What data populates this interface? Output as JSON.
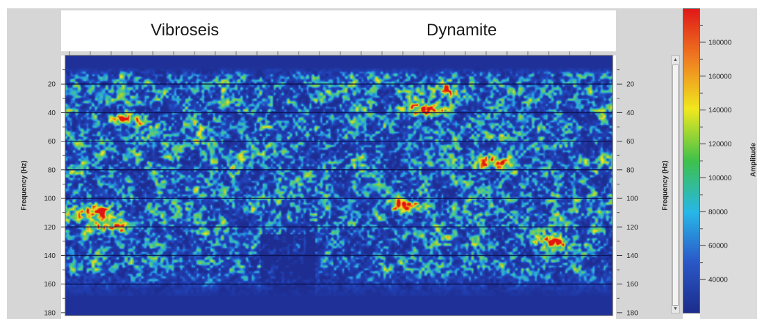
{
  "chart_data": {
    "type": "heatmap",
    "titles": [
      "Vibroseis",
      "Dynamite"
    ],
    "ylabel": "Frequency (Hz)",
    "yticks": [
      "20",
      "40",
      "60",
      "80",
      "100",
      "120",
      "140",
      "160",
      "180"
    ],
    "colorbar": {
      "label": "Amplitude",
      "ticks": [
        "40000",
        "60000",
        "80000",
        "100000",
        "120000",
        "140000",
        "160000",
        "180000"
      ],
      "colors": [
        "#1c2c8c",
        "#2a59c8",
        "#27b7e8",
        "#3ec14b",
        "#f0e81e",
        "#f08020",
        "#e01818"
      ]
    },
    "gridlines_hz": [
      20,
      40,
      60,
      80,
      100,
      120,
      140,
      160
    ],
    "hotspots": [
      {
        "panel": "Vibroseis",
        "hz": 110,
        "amp": 180000
      },
      {
        "panel": "Vibroseis",
        "hz": 120,
        "amp": 185000
      },
      {
        "panel": "Vibroseis",
        "hz": 45,
        "amp": 170000
      },
      {
        "panel": "Dynamite",
        "hz": 38,
        "amp": 190000
      },
      {
        "panel": "Dynamite",
        "hz": 25,
        "amp": 180000
      },
      {
        "panel": "Dynamite",
        "hz": 75,
        "amp": 185000
      },
      {
        "panel": "Dynamite",
        "hz": 105,
        "amp": 190000
      },
      {
        "panel": "Dynamite",
        "hz": 130,
        "amp": 185000
      }
    ]
  }
}
